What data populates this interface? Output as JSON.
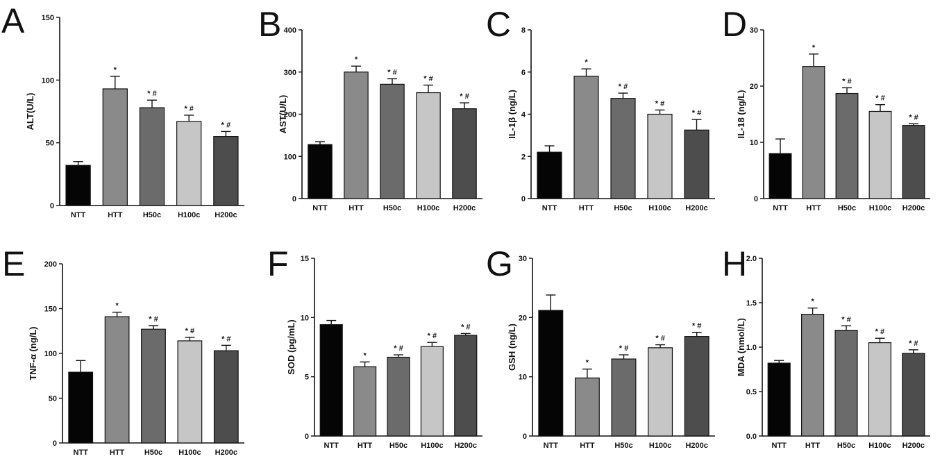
{
  "figure": {
    "categories": [
      "NTT",
      "HTT",
      "H50c",
      "H100c",
      "H200c"
    ],
    "bar_colors": [
      "#050505",
      "#8a8a8a",
      "#6b6b6b",
      "#c6c6c6",
      "#4d4d4d"
    ]
  },
  "chart_data": [
    {
      "panel": "A",
      "type": "bar",
      "ylabel": "ALT(U/L)",
      "categories": [
        "NTT",
        "HTT",
        "H50c",
        "H100c",
        "H200c"
      ],
      "values": [
        32,
        93,
        78,
        67,
        55
      ],
      "errors": [
        3,
        10,
        6,
        5,
        4
      ],
      "significance": [
        "",
        "*",
        "* #",
        "* #",
        "* #"
      ],
      "ylim": [
        0,
        150
      ],
      "yticks": [
        0,
        50,
        100,
        150
      ]
    },
    {
      "panel": "B",
      "type": "bar",
      "ylabel": "AST(U/L)",
      "categories": [
        "NTT",
        "HTT",
        "H50c",
        "H100c",
        "H200c"
      ],
      "values": [
        128,
        300,
        271,
        251,
        213
      ],
      "errors": [
        7,
        14,
        13,
        18,
        14
      ],
      "significance": [
        "",
        "*",
        "* #",
        "* #",
        "* #"
      ],
      "ylim": [
        0,
        400
      ],
      "yticks": [
        0,
        100,
        200,
        300,
        400
      ]
    },
    {
      "panel": "C",
      "type": "bar",
      "ylabel": "IL-1β (ng/L)",
      "categories": [
        "NTT",
        "HTT",
        "H50c",
        "H100c",
        "H200c"
      ],
      "values": [
        2.2,
        5.8,
        4.75,
        4.0,
        3.25
      ],
      "errors": [
        0.3,
        0.35,
        0.25,
        0.2,
        0.5
      ],
      "significance": [
        "",
        "*",
        "* #",
        "* #",
        "* #"
      ],
      "ylim": [
        0,
        8
      ],
      "yticks": [
        0,
        2,
        4,
        6,
        8
      ]
    },
    {
      "panel": "D",
      "type": "bar",
      "ylabel": "IL-18 (ng/L)",
      "categories": [
        "NTT",
        "HTT",
        "H50c",
        "H100c",
        "H200c"
      ],
      "values": [
        8,
        23.5,
        18.7,
        15.5,
        13
      ],
      "errors": [
        2.6,
        2.2,
        1.0,
        1.2,
        0.3
      ],
      "significance": [
        "",
        "*",
        "* #",
        "* #",
        "* #"
      ],
      "ylim": [
        0,
        30
      ],
      "yticks": [
        0,
        10,
        20,
        30
      ]
    },
    {
      "panel": "E",
      "type": "bar",
      "ylabel": "TNF-α (ng/L)",
      "categories": [
        "NTT",
        "HTT",
        "H50c",
        "H100c",
        "H200c"
      ],
      "values": [
        79,
        141,
        127,
        114,
        103
      ],
      "errors": [
        13,
        5,
        4,
        4,
        6
      ],
      "significance": [
        "",
        "*",
        "* #",
        "* #",
        "* #"
      ],
      "ylim": [
        0,
        200
      ],
      "yticks": [
        0,
        50,
        100,
        150,
        200
      ]
    },
    {
      "panel": "F",
      "type": "bar",
      "ylabel": "SOD (pg/mL)",
      "categories": [
        "NTT",
        "HTT",
        "H50c",
        "H100c",
        "H200c"
      ],
      "values": [
        9.4,
        5.85,
        6.65,
        7.55,
        8.5
      ],
      "errors": [
        0.35,
        0.4,
        0.2,
        0.35,
        0.15
      ],
      "significance": [
        "",
        "*",
        "* #",
        "* #",
        "* #"
      ],
      "ylim": [
        0,
        15
      ],
      "yticks": [
        0,
        5,
        10,
        15
      ]
    },
    {
      "panel": "G",
      "type": "bar",
      "ylabel": "GSH (ng/L)",
      "categories": [
        "NTT",
        "HTT",
        "H50c",
        "H100c",
        "H200c"
      ],
      "values": [
        21.2,
        9.8,
        13.0,
        14.9,
        16.8
      ],
      "errors": [
        2.6,
        1.5,
        0.7,
        0.5,
        0.7
      ],
      "significance": [
        "",
        "*",
        "* #",
        "* #",
        "* #"
      ],
      "ylim": [
        0,
        30
      ],
      "yticks": [
        0,
        10,
        20,
        30
      ]
    },
    {
      "panel": "H",
      "type": "bar",
      "ylabel": "MDA (nmol/L)",
      "categories": [
        "NTT",
        "HTT",
        "H50c",
        "H100c",
        "H200c"
      ],
      "values": [
        0.82,
        1.37,
        1.19,
        1.05,
        0.93
      ],
      "errors": [
        0.03,
        0.07,
        0.05,
        0.05,
        0.04
      ],
      "significance": [
        "",
        "*",
        "* #",
        "* #",
        "* #"
      ],
      "ylim": [
        0,
        2.0
      ],
      "yticks": [
        0.0,
        0.5,
        1.0,
        1.5,
        2.0
      ],
      "ytick_labels": [
        "0.0",
        "0.5",
        "1.0",
        "1.5",
        "2.0"
      ]
    }
  ]
}
